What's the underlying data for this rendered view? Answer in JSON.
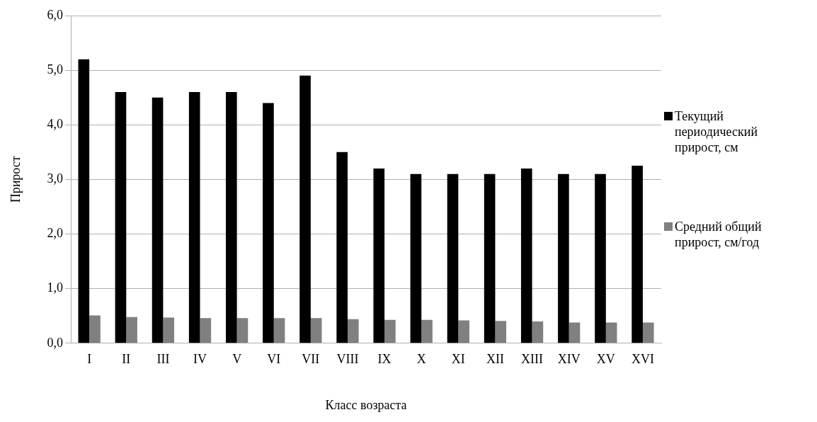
{
  "chart_data": {
    "type": "bar",
    "xlabel": "Класс возраста",
    "ylabel": "Прирост",
    "categories": [
      "I",
      "II",
      "III",
      "IV",
      "V",
      "VI",
      "VII",
      "VIII",
      "IX",
      "X",
      "XI",
      "XII",
      "XIII",
      "XIV",
      "XV",
      "XVI"
    ],
    "series": [
      {
        "name": "Текущий периодический прирост, см",
        "color": "#000000",
        "values": [
          5.2,
          4.6,
          4.5,
          4.6,
          4.6,
          4.4,
          4.9,
          3.5,
          3.2,
          3.1,
          3.1,
          3.1,
          3.2,
          3.1,
          3.1,
          3.25
        ]
      },
      {
        "name": "Средний общий прирост, см/год",
        "color": "#808080",
        "values": [
          0.51,
          0.48,
          0.47,
          0.46,
          0.46,
          0.46,
          0.46,
          0.44,
          0.43,
          0.43,
          0.42,
          0.41,
          0.4,
          0.38,
          0.38,
          0.38
        ]
      }
    ],
    "ylim": [
      0,
      6
    ],
    "yticks": [
      {
        "value": 0,
        "label": "0,0"
      },
      {
        "value": 1,
        "label": "1,0"
      },
      {
        "value": 2,
        "label": "2,0"
      },
      {
        "value": 3,
        "label": "3,0"
      },
      {
        "value": 4,
        "label": "4,0"
      },
      {
        "value": 5,
        "label": "5,0"
      },
      {
        "value": 6,
        "label": "6,0"
      }
    ],
    "grid": "y",
    "legend": "right"
  }
}
